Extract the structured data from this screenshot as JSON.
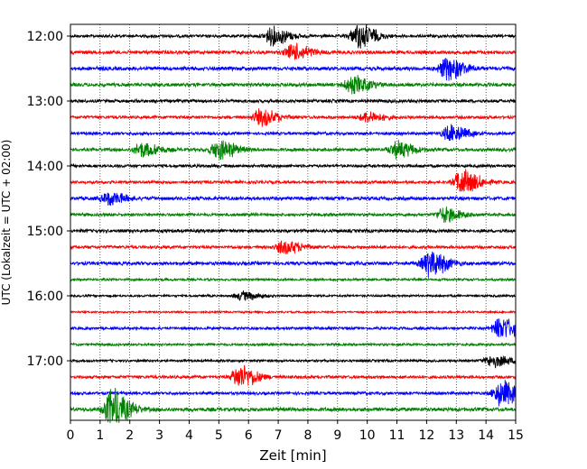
{
  "chart_data": {
    "type": "line",
    "title": "",
    "xlabel": "Zeit  [min]",
    "ylabel": "UTC (Lokalzeit = UTC + 02:00)",
    "xlim": [
      0,
      15
    ],
    "x_ticks": [
      0,
      1,
      2,
      3,
      4,
      5,
      6,
      7,
      8,
      9,
      10,
      11,
      12,
      13,
      14,
      15
    ],
    "y_tick_labels": [
      "12:00",
      "13:00",
      "14:00",
      "15:00",
      "16:00",
      "17:00"
    ],
    "grid": "vertical dotted lines at each minute",
    "series_colors": [
      "#000000",
      "#ff0000",
      "#0000ff",
      "#008000"
    ],
    "traces": [
      {
        "start": "12:00",
        "color": "#000000",
        "base_amp": 0.55,
        "events": [
          {
            "t": 6.8,
            "amp": 1.0
          },
          {
            "t": 9.7,
            "amp": 1.4
          }
        ]
      },
      {
        "start": "12:15",
        "color": "#ff0000",
        "base_amp": 0.65,
        "events": [
          {
            "t": 7.5,
            "amp": 0.9
          }
        ]
      },
      {
        "start": "12:30",
        "color": "#0000ff",
        "base_amp": 0.7,
        "events": [
          {
            "t": 12.7,
            "amp": 1.3
          }
        ]
      },
      {
        "start": "12:45",
        "color": "#008000",
        "base_amp": 0.65,
        "events": [
          {
            "t": 9.5,
            "amp": 1.0
          }
        ]
      },
      {
        "start": "13:00",
        "color": "#000000",
        "base_amp": 0.6,
        "events": []
      },
      {
        "start": "13:15",
        "color": "#ff0000",
        "base_amp": 0.55,
        "events": [
          {
            "t": 6.4,
            "amp": 0.9
          },
          {
            "t": 10.0,
            "amp": 0.6
          }
        ]
      },
      {
        "start": "13:30",
        "color": "#0000ff",
        "base_amp": 0.55,
        "events": [
          {
            "t": 12.8,
            "amp": 0.9
          }
        ]
      },
      {
        "start": "13:45",
        "color": "#008000",
        "base_amp": 0.6,
        "events": [
          {
            "t": 2.4,
            "amp": 0.8
          },
          {
            "t": 5.0,
            "amp": 1.1
          },
          {
            "t": 11.0,
            "amp": 0.9
          }
        ]
      },
      {
        "start": "14:00",
        "color": "#000000",
        "base_amp": 0.55,
        "events": []
      },
      {
        "start": "14:15",
        "color": "#ff0000",
        "base_amp": 0.55,
        "events": [
          {
            "t": 13.2,
            "amp": 1.5
          }
        ]
      },
      {
        "start": "14:30",
        "color": "#0000ff",
        "base_amp": 0.65,
        "events": [
          {
            "t": 1.3,
            "amp": 0.7
          }
        ]
      },
      {
        "start": "14:45",
        "color": "#008000",
        "base_amp": 0.55,
        "events": [
          {
            "t": 12.6,
            "amp": 0.8
          }
        ]
      },
      {
        "start": "15:00",
        "color": "#000000",
        "base_amp": 0.6,
        "events": []
      },
      {
        "start": "15:15",
        "color": "#ff0000",
        "base_amp": 0.55,
        "events": [
          {
            "t": 7.2,
            "amp": 0.8
          }
        ]
      },
      {
        "start": "15:30",
        "color": "#0000ff",
        "base_amp": 0.65,
        "events": [
          {
            "t": 12.1,
            "amp": 1.5
          }
        ]
      },
      {
        "start": "15:45",
        "color": "#008000",
        "base_amp": 0.45,
        "events": []
      },
      {
        "start": "16:00",
        "color": "#000000",
        "base_amp": 0.4,
        "events": [
          {
            "t": 5.8,
            "amp": 0.5
          }
        ]
      },
      {
        "start": "16:15",
        "color": "#ff0000",
        "base_amp": 0.35,
        "events": []
      },
      {
        "start": "16:30",
        "color": "#0000ff",
        "base_amp": 0.5,
        "events": [
          {
            "t": 14.5,
            "amp": 1.3
          }
        ]
      },
      {
        "start": "16:45",
        "color": "#008000",
        "base_amp": 0.45,
        "events": []
      },
      {
        "start": "17:00",
        "color": "#000000",
        "base_amp": 0.45,
        "events": [
          {
            "t": 14.2,
            "amp": 0.7
          }
        ]
      },
      {
        "start": "17:15",
        "color": "#ff0000",
        "base_amp": 0.55,
        "events": [
          {
            "t": 5.7,
            "amp": 1.3
          }
        ]
      },
      {
        "start": "17:30",
        "color": "#0000ff",
        "base_amp": 0.55,
        "events": [
          {
            "t": 14.5,
            "amp": 1.4
          }
        ]
      },
      {
        "start": "17:45",
        "color": "#008000",
        "base_amp": 0.7,
        "events": [
          {
            "t": 1.4,
            "amp": 2.2
          }
        ]
      }
    ]
  }
}
